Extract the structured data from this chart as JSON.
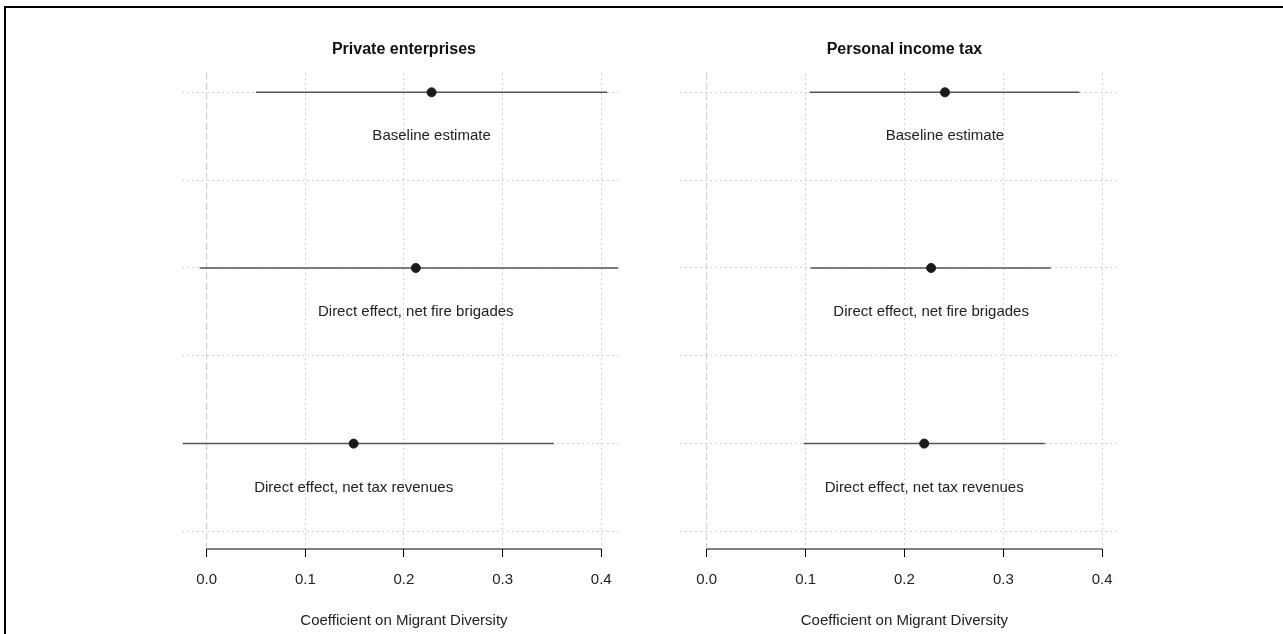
{
  "chart_data": [
    {
      "type": "scatter",
      "title": "Private enterprises",
      "xlabel": "Coefficient on Migrant Diversity",
      "categories": [
        "Baseline estimate",
        "Direct effect, net fire brigades",
        "Direct effect, net tax revenues"
      ],
      "orientation": "horizontal",
      "values": [
        0.228,
        0.212,
        0.149
      ],
      "errors": [
        [
          0.05,
          0.406
        ],
        [
          -0.007,
          0.417
        ],
        [
          -0.024,
          0.352
        ]
      ],
      "color": "#1a1a1a",
      "marker": "circle",
      "xlim": [
        -0.025,
        0.418
      ],
      "xticks": [
        {
          "value": 0,
          "label": "0.0"
        },
        {
          "value": 0.1,
          "label": "0.1"
        },
        {
          "value": 0.2,
          "label": "0.2"
        },
        {
          "value": 0.3,
          "label": "0.3"
        },
        {
          "value": 0.4,
          "label": "0.4"
        }
      ],
      "grid": true,
      "ref_lines": [
        {
          "axis": "x",
          "value": 0,
          "color": "#cccccc",
          "line_style": "dashed"
        }
      ]
    },
    {
      "type": "scatter",
      "title": "Personal income tax",
      "xlabel": "Coefficient on Migrant Diversity",
      "categories": [
        "Baseline estimate",
        "Direct effect, net fire brigades",
        "Direct effect, net tax revenues"
      ],
      "orientation": "horizontal",
      "values": [
        0.241,
        0.227,
        0.22
      ],
      "errors": [
        [
          0.104,
          0.377
        ],
        [
          0.105,
          0.348
        ],
        [
          0.098,
          0.342
        ]
      ],
      "color": "#1a1a1a",
      "marker": "circle",
      "xlim": [
        -0.027,
        0.416
      ],
      "xticks": [
        {
          "value": 0,
          "label": "0.0"
        },
        {
          "value": 0.1,
          "label": "0.1"
        },
        {
          "value": 0.2,
          "label": "0.2"
        },
        {
          "value": 0.3,
          "label": "0.3"
        },
        {
          "value": 0.4,
          "label": "0.4"
        }
      ],
      "grid": true,
      "ref_lines": [
        {
          "axis": "x",
          "value": 0,
          "color": "#cccccc",
          "line_style": "dashed"
        }
      ]
    }
  ]
}
